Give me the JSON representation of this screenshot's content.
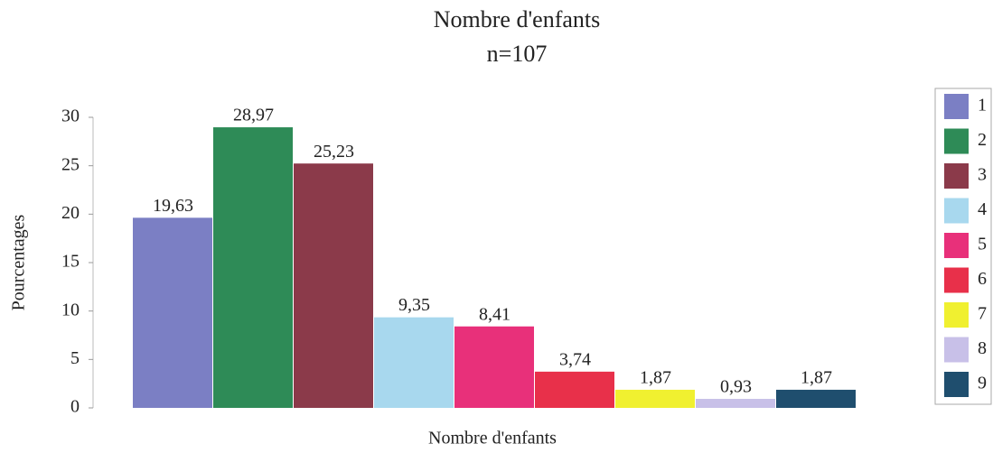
{
  "chart_data": {
    "type": "bar",
    "title": "Nombre d'enfants",
    "subtitle": "n=107",
    "y_label": "Pourcentages",
    "x_label": "Nombre d'enfants",
    "categories": [
      "1",
      "2",
      "3",
      "4",
      "5",
      "6",
      "7",
      "8",
      "9"
    ],
    "values": [
      19.63,
      28.97,
      25.23,
      9.35,
      8.41,
      3.74,
      1.87,
      0.93,
      1.87
    ],
    "value_labels": [
      "19,63",
      "28,97",
      "25,23",
      "9,35",
      "8,41",
      "3,74",
      "1,87",
      "0,93",
      "1,87"
    ],
    "colors": [
      "#7b7fc4",
      "#2e8b57",
      "#8b3a4a",
      "#a8d8ee",
      "#e8307a",
      "#e8304a",
      "#f0f030",
      "#c8c0e8",
      "#1f4e6e"
    ],
    "ylim": [
      0,
      30
    ],
    "yticks": [
      0,
      5,
      10,
      15,
      20,
      25,
      30
    ],
    "legend": "right"
  }
}
